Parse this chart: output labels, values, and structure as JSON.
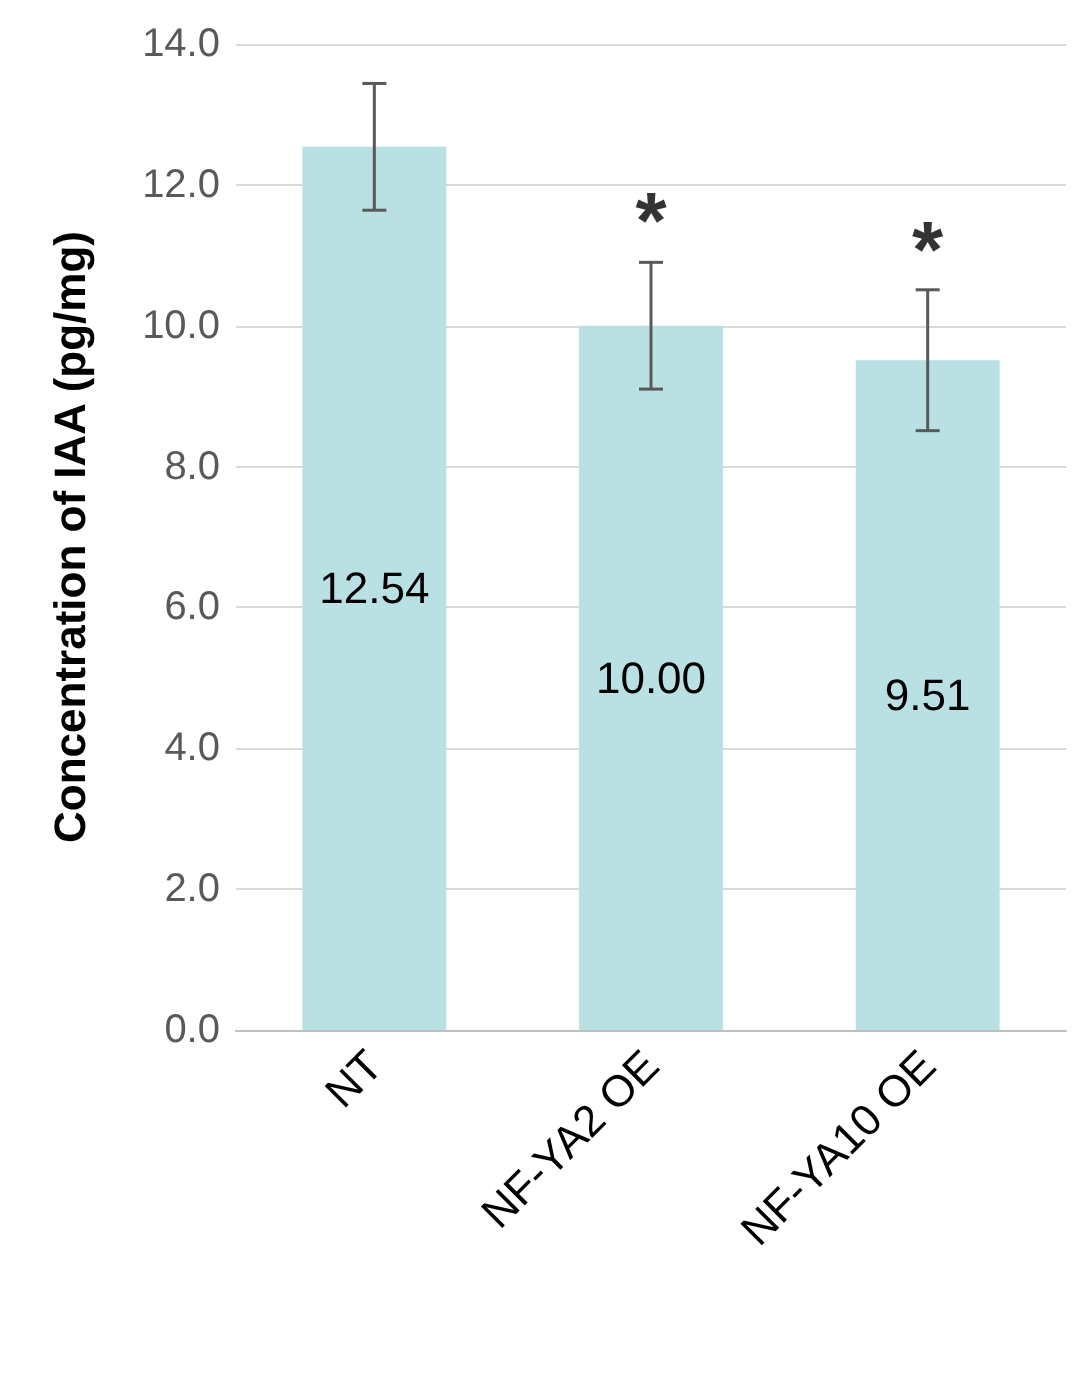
{
  "chart_data": {
    "type": "bar",
    "ylabel": "Concentration of IAA (pg/mg)",
    "categories": [
      "NT",
      "NF-YA2 OE",
      "NF-YA10 OE"
    ],
    "values": [
      12.54,
      10.0,
      9.51
    ],
    "value_labels": [
      "12.54",
      "10.00",
      "9.51"
    ],
    "errors": [
      0.9,
      0.9,
      1.0
    ],
    "color": "#b9e0e3",
    "ylim": [
      0,
      14
    ],
    "yticks": [
      {
        "value": 0,
        "label": "0.0"
      },
      {
        "value": 2,
        "label": "2.0"
      },
      {
        "value": 4,
        "label": "4.0"
      },
      {
        "value": 6,
        "label": "6.0"
      },
      {
        "value": 8,
        "label": "8.0"
      },
      {
        "value": 10,
        "label": "10.0"
      },
      {
        "value": 12,
        "label": "12.0"
      },
      {
        "value": 14,
        "label": "14.0"
      }
    ],
    "grid": "y",
    "annotations": [
      {
        "text": "*",
        "x": "NF-YA2 OE",
        "y": 10.9
      },
      {
        "text": "*",
        "x": "NF-YA10 OE",
        "y": 10.5
      }
    ]
  }
}
